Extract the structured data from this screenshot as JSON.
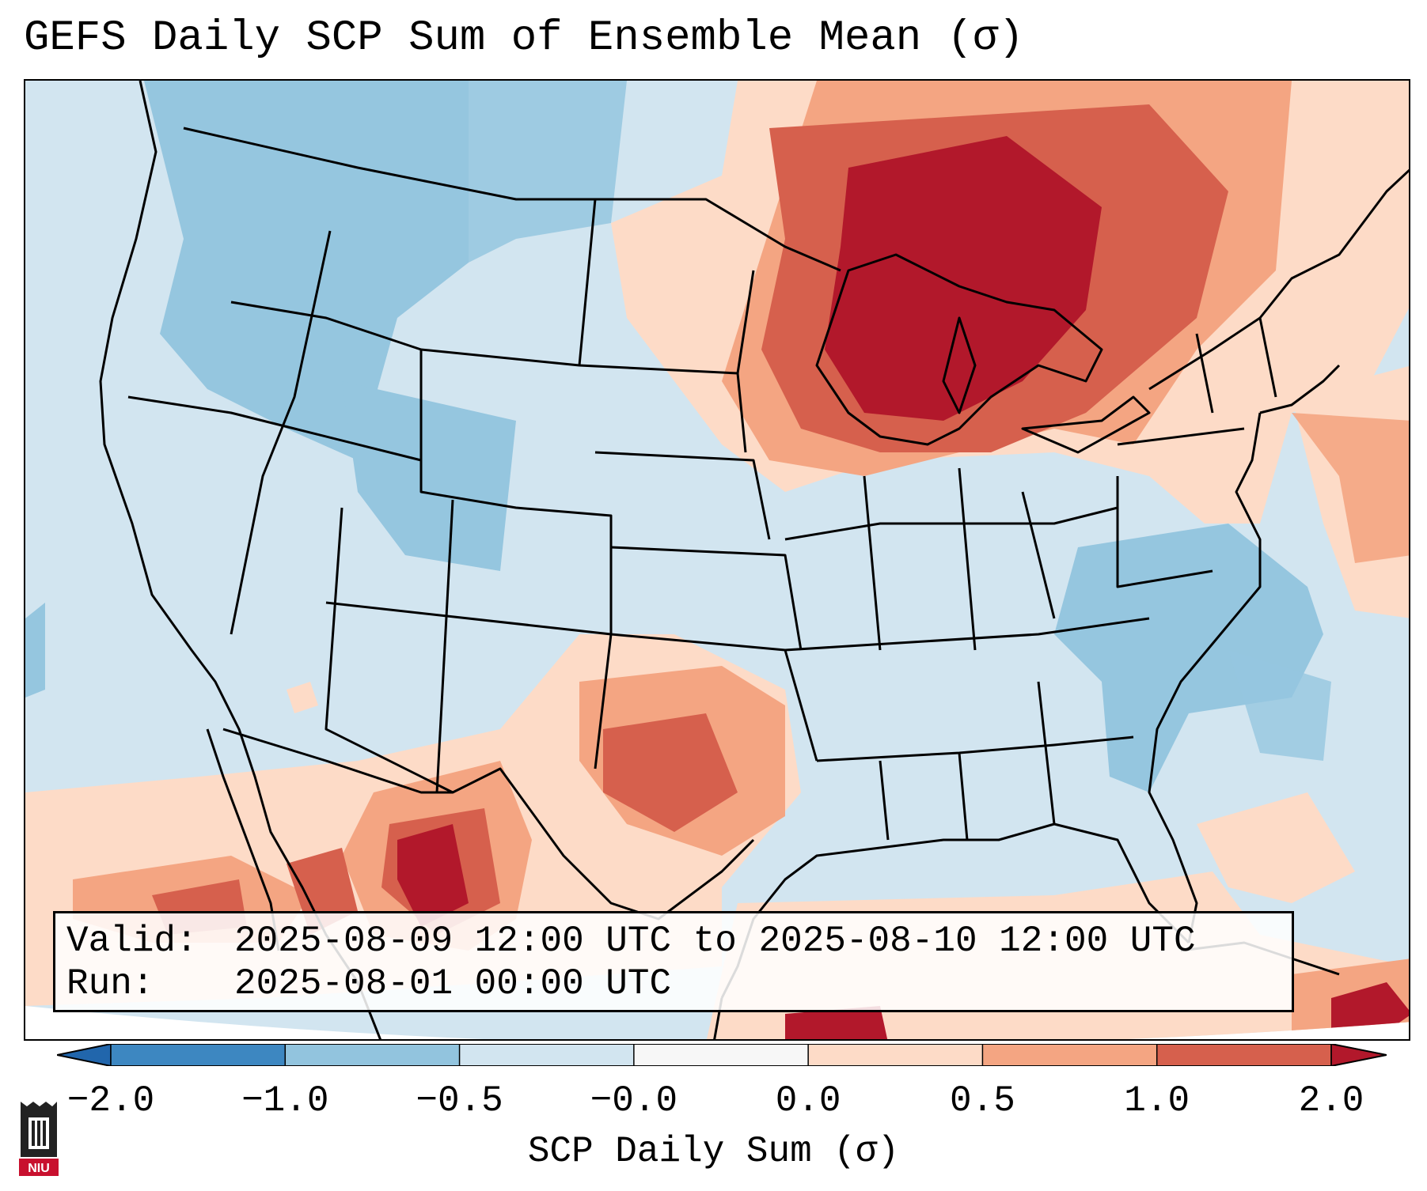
{
  "title": "GEFS Daily SCP Sum of Ensemble Mean (σ)",
  "info": {
    "valid_label": "Valid:",
    "valid_value": "2025-08-09 12:00 UTC to 2025-08-10 12:00 UTC",
    "run_label": "Run:",
    "run_value": "2025-08-01 00:00 UTC"
  },
  "colorbar": {
    "label": "SCP Daily Sum (σ)",
    "ticks": [
      "−2.0",
      "−1.0",
      "−0.5",
      "−0.0",
      "0.0",
      "0.5",
      "1.0",
      "2.0"
    ],
    "colors": [
      "#3d87c1",
      "#92c4de",
      "#d2e5f0",
      "#f7f7f7",
      "#fddbc7",
      "#f4a582",
      "#d6604d",
      "#b2182b"
    ],
    "extend_low_color": "#2166ac",
    "extend_high_color": "#b2182b"
  },
  "map": {
    "background_color": "#d2e5f0",
    "region": "Contiguous United States",
    "highlights": {
      "strong_positive_region": "Upper Midwest / Great Lakes",
      "positive_region_south": "Texas and northern Mexico",
      "negative_region": "Northwest and Mid-Atlantic"
    }
  },
  "logo": {
    "text": "NIU",
    "icon": "niu-logo-icon"
  }
}
